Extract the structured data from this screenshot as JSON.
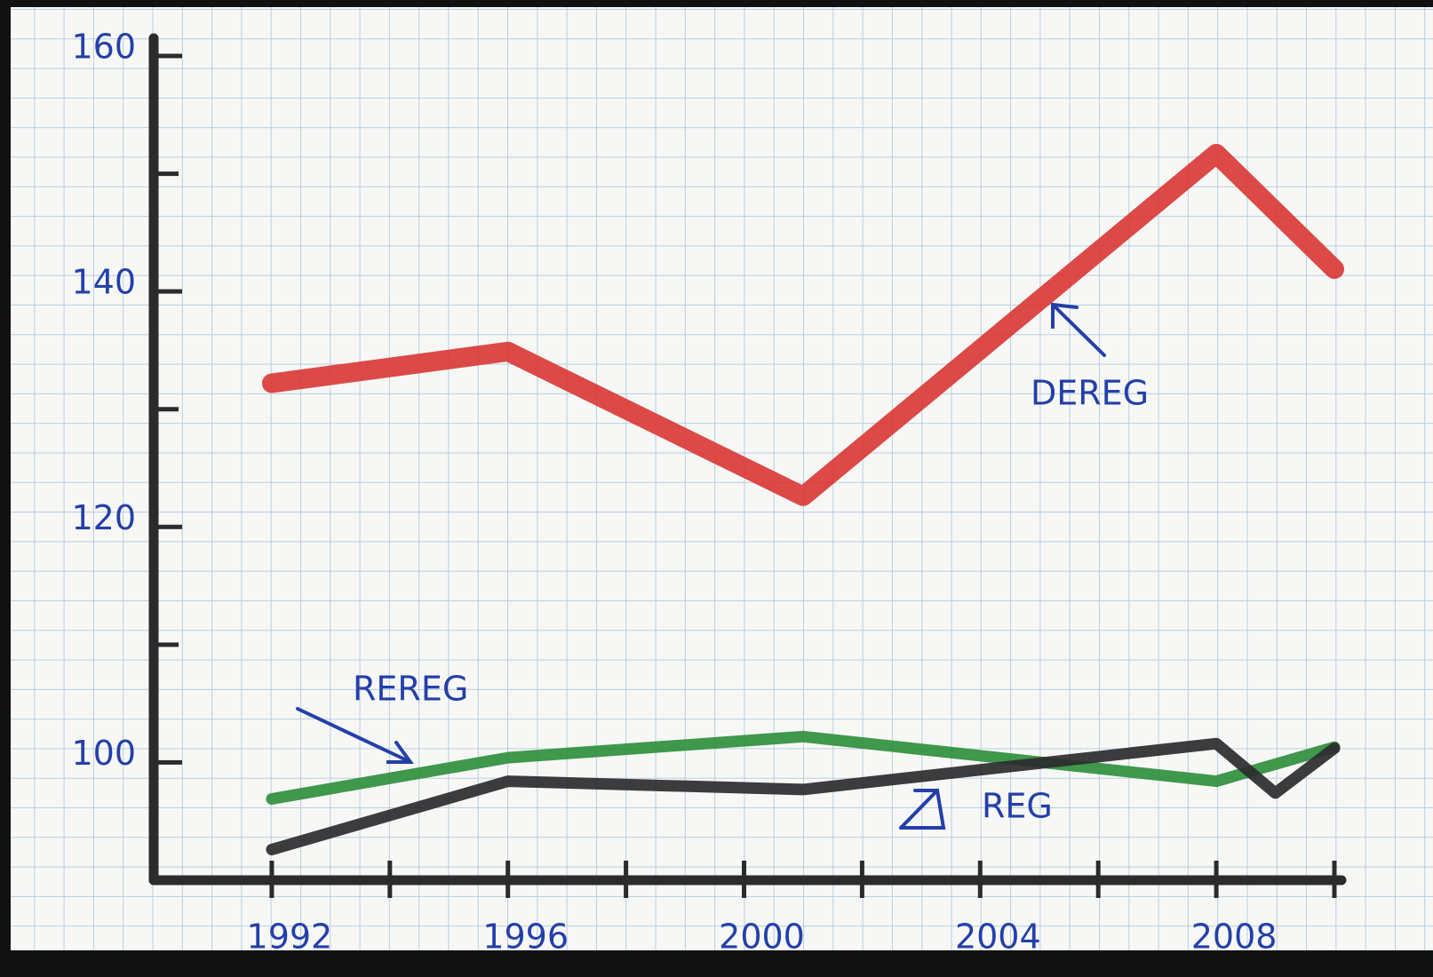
{
  "chart_data": {
    "type": "line",
    "xlim": [
      1990,
      2010
    ],
    "xticks": [
      1992,
      1996,
      2000,
      2004,
      2008
    ],
    "xminorticks": [
      1994,
      1998,
      2002,
      2006,
      2010
    ],
    "ylim": [
      90,
      160
    ],
    "yticks": [
      100,
      120,
      140,
      160
    ],
    "yminorticks": [
      110,
      130,
      150
    ],
    "grid": true,
    "series": [
      {
        "name": "DEREG",
        "color": "#d93a36",
        "x": [
          1992,
          1996,
          2001,
          2008,
          2010
        ],
        "values": [
          132.2,
          134.9,
          122.6,
          151.7,
          141.9
        ]
      },
      {
        "name": "REREG",
        "color": "#2f8f3c",
        "x": [
          1992,
          1996,
          2001,
          2008,
          2010
        ],
        "values": [
          96.9,
          100.4,
          102.2,
          98.4,
          101.3
        ]
      },
      {
        "name": "REG",
        "color": "#2b2b2e",
        "x": [
          1992,
          1996,
          2001,
          2008,
          2009,
          2010
        ],
        "values": [
          92.6,
          98.4,
          97.7,
          101.6,
          97.4,
          101.2
        ]
      }
    ]
  }
}
